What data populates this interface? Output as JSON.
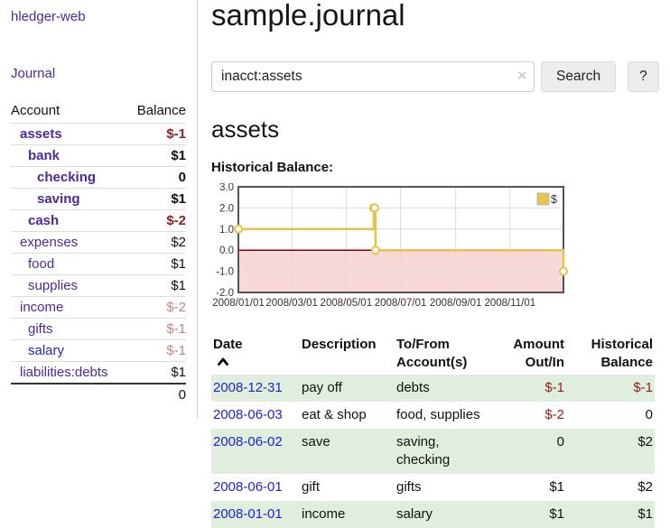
{
  "app": {
    "title": "hledger-web"
  },
  "sidebar": {
    "journal_label": "Journal",
    "accounts": {
      "account_header": "Account",
      "balance_header": "Balance",
      "rows": [
        {
          "name": "assets",
          "balance": "$-1"
        },
        {
          "name": "bank",
          "balance": "$1"
        },
        {
          "name": "checking",
          "balance": "0"
        },
        {
          "name": "saving",
          "balance": "$1"
        },
        {
          "name": "cash",
          "balance": "$-2"
        },
        {
          "name": "expenses",
          "balance": "$2"
        },
        {
          "name": "food",
          "balance": "$1"
        },
        {
          "name": "supplies",
          "balance": "$1"
        },
        {
          "name": "income",
          "balance": "$-2"
        },
        {
          "name": "gifts",
          "balance": "$-1"
        },
        {
          "name": "salary",
          "balance": "$-1"
        },
        {
          "name": "liabilities:debts",
          "balance": "$1"
        }
      ],
      "total": "0"
    }
  },
  "main": {
    "title": "sample.journal",
    "search": {
      "value": "inacct:assets",
      "clear_icon": "×",
      "button_label": "Search",
      "help_label": "?"
    },
    "account_heading": "assets",
    "chart_label": "Historical Balance:"
  },
  "chart_data": {
    "type": "line",
    "step": true,
    "title": "Historical Balance",
    "series": [
      {
        "name": "$",
        "color": "#e8c24a",
        "points": [
          [
            "2008-01-01",
            1
          ],
          [
            "2008-06-01",
            2
          ],
          [
            "2008-06-02",
            2
          ],
          [
            "2008-06-03",
            0
          ],
          [
            "2008-12-31",
            -1
          ]
        ]
      }
    ],
    "x_range": [
      "2008-01-01",
      "2008-12-31"
    ],
    "ylim": [
      -2,
      3
    ],
    "y_ticks": [
      "3.0",
      "2.0",
      "1.0",
      "0.0",
      "-1.0",
      "-2.0"
    ],
    "x_ticks": [
      "2008/01/01",
      "2008/03/01",
      "2008/05/01",
      "2008/07/01",
      "2008/09/01",
      "2008/11/01"
    ],
    "negative_region_color": "#f9d8d8",
    "zero_line_color": "#8b0000",
    "grid": true,
    "legend_position": "top-right"
  },
  "register": {
    "headers": {
      "date": {
        "line1": "Date"
      },
      "description": {
        "line1": "Description"
      },
      "tofrom": {
        "line1": "To/From",
        "line2": "Account(s)"
      },
      "amount": {
        "line1": "Amount",
        "line2": "Out/In"
      },
      "balance": {
        "line1": "Historical",
        "line2": "Balance"
      }
    },
    "rows": [
      {
        "date": "2008-12-31",
        "description": "pay off",
        "accounts": "debts",
        "amount": "$-1",
        "balance": "$-1"
      },
      {
        "date": "2008-06-03",
        "description": "eat & shop",
        "accounts": "food, supplies",
        "amount": "$-2",
        "balance": "0"
      },
      {
        "date": "2008-06-02",
        "description": "save",
        "accounts": "saving, checking",
        "amount": "0",
        "balance": "$2"
      },
      {
        "date": "2008-06-01",
        "description": "gift",
        "accounts": "gifts",
        "amount": "$1",
        "balance": "$2"
      },
      {
        "date": "2008-01-01",
        "description": "income",
        "accounts": "salary",
        "amount": "$1",
        "balance": "$1"
      }
    ]
  }
}
